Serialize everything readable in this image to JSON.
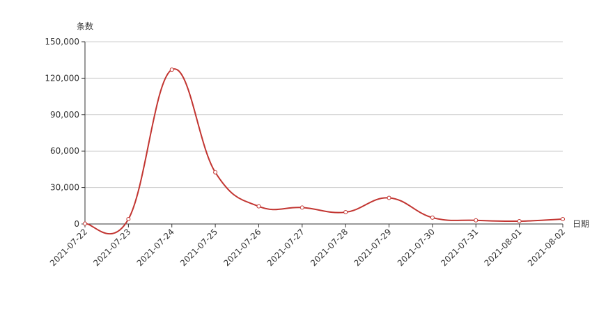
{
  "chart_data": {
    "type": "line",
    "y_axis_label": "条数",
    "x_axis_label": "日期",
    "categories": [
      "2021-07-22",
      "2021-07-23",
      "2021-07-24",
      "2021-07-25",
      "2021-07-26",
      "2021-07-27",
      "2021-07-28",
      "2021-07-29",
      "2021-07-30",
      "2021-07-31",
      "2021-08-01",
      "2021-08-02"
    ],
    "series": [
      {
        "name": "条数",
        "color": "#c23531",
        "values": [
          300,
          4000,
          127000,
          42500,
          14500,
          13500,
          9700,
          21500,
          5200,
          3000,
          2300,
          4000
        ]
      }
    ],
    "ylim": [
      0,
      150000
    ],
    "yticks": [
      0,
      {
        "value": 30000,
        "label": "30,000"
      },
      {
        "value": 60000,
        "label": "60,000"
      },
      {
        "value": 90000,
        "label": "90,000"
      },
      {
        "value": 120000,
        "label": "120,000"
      },
      {
        "value": 150000,
        "label": "150,000"
      }
    ],
    "grid": true,
    "smooth": true
  }
}
